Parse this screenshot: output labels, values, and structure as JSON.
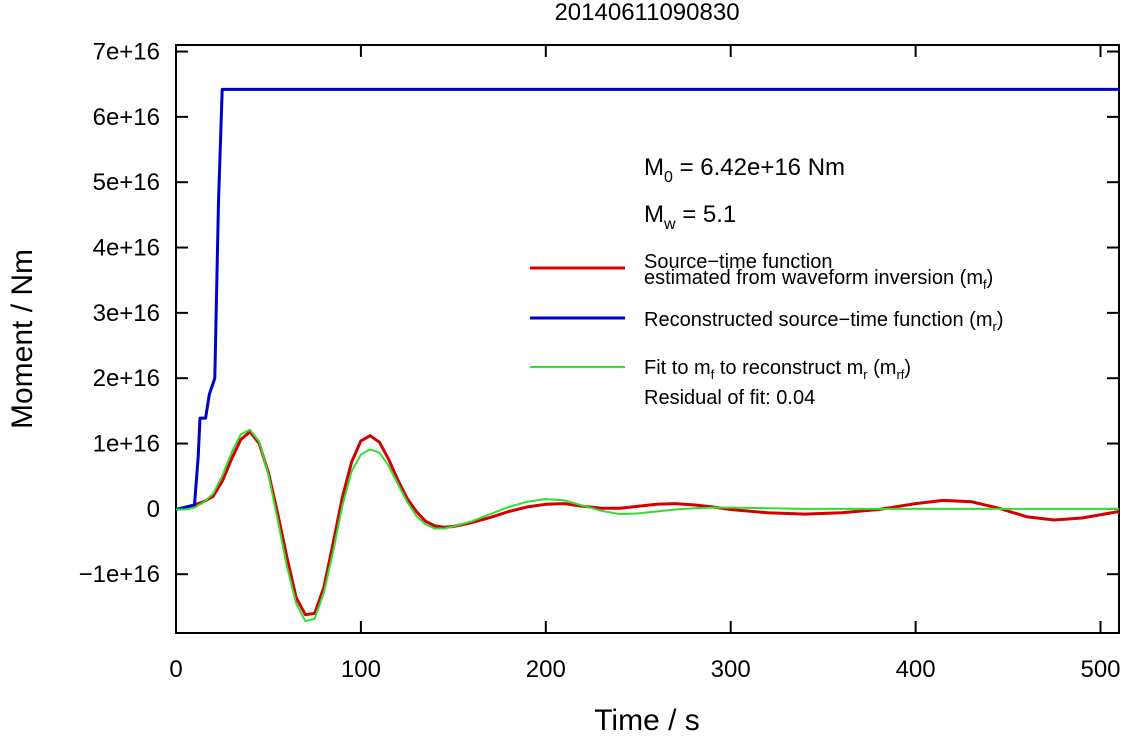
{
  "chart_data": {
    "type": "line",
    "title": "20140611090830",
    "xlabel": "Time / s",
    "ylabel": "Moment / Nm",
    "xlim": [
      0,
      510
    ],
    "ylim": [
      -1.9e+16,
      7.1e+16
    ],
    "x_ticks": [
      0,
      100,
      200,
      300,
      400,
      500
    ],
    "x_tick_labels": [
      "0",
      "100",
      "200",
      "300",
      "400",
      "500"
    ],
    "y_ticks": [
      -1e+16,
      0,
      1e+16,
      2e+16,
      3e+16,
      4e+16,
      5e+16,
      6e+16,
      7e+16
    ],
    "y_tick_labels": [
      "−1e+16",
      "0",
      "1e+16",
      "2e+16",
      "3e+16",
      "4e+16",
      "5e+16",
      "6e+16",
      "7e+16"
    ],
    "grid": false,
    "legend_position": "center-right",
    "annotations": {
      "m0_text": "M",
      "m0_sub": "0",
      "m0_value": " = 6.42e+16 Nm",
      "mw_text": "M",
      "mw_sub": "w",
      "mw_value": " = 5.1",
      "residual": "Residual of fit: 0.04"
    },
    "legend": {
      "red_line1": "Source−time function",
      "red_line2": "estimated from waveform inversion (m",
      "red_sub": "f",
      "red_tail": ")",
      "blue_main": "Reconstructed source−time function (m",
      "blue_sub": "r",
      "blue_tail": ")",
      "green_main": "Fit to m",
      "green_sub1": "f",
      "green_mid": " to reconstruct m",
      "green_sub2": "r",
      "green_mid2": " (m",
      "green_sub3": "rf",
      "green_tail": ")"
    },
    "series": [
      {
        "color": "#d40000",
        "x": [
          0,
          5,
          10,
          15,
          20,
          25,
          30,
          35,
          40,
          45,
          50,
          55,
          60,
          65,
          70,
          75,
          80,
          85,
          90,
          95,
          100,
          105,
          110,
          115,
          120,
          125,
          130,
          135,
          140,
          145,
          150,
          160,
          170,
          180,
          190,
          200,
          210,
          220,
          230,
          240,
          250,
          260,
          270,
          280,
          290,
          300,
          320,
          340,
          360,
          380,
          400,
          415,
          430,
          445,
          460,
          475,
          490,
          510
        ],
        "y": [
          -100000000000000.0,
          100000000000000.0,
          600000000000000.0,
          1100000000000000.0,
          1900000000000000.0,
          4200000000000000.0,
          7600000000000000.0,
          1.06e+16,
          1.18e+16,
          1e+16,
          5500000000000000.0,
          -700000000000000.0,
          -7400000000000000.0,
          -1.36e+16,
          -1.62e+16,
          -1.6e+16,
          -1.2e+16,
          -5200000000000000.0,
          1800000000000000.0,
          7200000000000000.0,
          1.04e+16,
          1.12e+16,
          1.02e+16,
          7600000000000000.0,
          4400000000000000.0,
          1600000000000000.0,
          -400000000000000.0,
          -1900000000000000.0,
          -2600000000000000.0,
          -2800000000000000.0,
          -2700000000000000.0,
          -2100000000000000.0,
          -1300000000000000.0,
          -400000000000000.0,
          300000000000000.0,
          700000000000000.0,
          800000000000000.0,
          400000000000000.0,
          100000000000000.0,
          100000000000000.0,
          400000000000000.0,
          700000000000000.0,
          800000000000000.0,
          600000000000000.0,
          300000000000000.0,
          -100000000000000.0,
          -600000000000000.0,
          -800000000000000.0,
          -600000000000000.0,
          -100000000000000.0,
          800000000000000.0,
          1300000000000000.0,
          1100000000000000.0,
          100000000000000.0,
          -1200000000000000.0,
          -1700000000000000.0,
          -1400000000000000.0,
          -400000000000000.0
        ]
      },
      {
        "color": "#0000cc",
        "x": [
          0,
          10,
          12,
          13,
          16,
          18,
          21,
          23,
          25,
          510
        ],
        "y": [
          -100000000000000.0,
          600000000000000.0,
          8000000000000000.0,
          1.39e+16,
          1.39e+16,
          1.75e+16,
          2e+16,
          4.7e+16,
          6.42e+16,
          6.42e+16
        ]
      },
      {
        "color": "#33dd33",
        "x": [
          0,
          5,
          10,
          15,
          20,
          25,
          30,
          35,
          40,
          45,
          50,
          55,
          60,
          65,
          70,
          75,
          80,
          85,
          90,
          95,
          100,
          105,
          110,
          115,
          120,
          125,
          130,
          135,
          140,
          145,
          150,
          160,
          170,
          180,
          190,
          200,
          210,
          220,
          230,
          240,
          250,
          260,
          270,
          280,
          290,
          300,
          320,
          340,
          360,
          380,
          400,
          420,
          440,
          460,
          480,
          500,
          510
        ],
        "y": [
          -100000000000000.0,
          -100000000000000.0,
          200000000000000.0,
          1000000000000000.0,
          2300000000000000.0,
          5000000000000000.0,
          8600000000000000.0,
          1.14e+16,
          1.21e+16,
          1.03e+16,
          5200000000000000.0,
          -1700000000000000.0,
          -8800000000000000.0,
          -1.45e+16,
          -1.72e+16,
          -1.68e+16,
          -1.28e+16,
          -6500000000000000.0,
          500000000000000.0,
          5800000000000000.0,
          8300000000000000.0,
          9100000000000000.0,
          8600000000000000.0,
          6600000000000000.0,
          3800000000000000.0,
          1100000000000000.0,
          -1100000000000000.0,
          -2400000000000000.0,
          -3000000000000000.0,
          -3000000000000000.0,
          -2700000000000000.0,
          -1900000000000000.0,
          -800000000000000.0,
          300000000000000.0,
          1100000000000000.0,
          1500000000000000.0,
          1300000000000000.0,
          500000000000000.0,
          -300000000000000.0,
          -800000000000000.0,
          -700000000000000.0,
          -400000000000000.0,
          -100000000000000.0,
          100000000000000.0,
          200000000000000.0,
          200000000000000.0,
          100000000000000.0,
          0,
          0,
          0,
          0,
          0,
          0,
          0,
          0,
          0,
          0
        ]
      }
    ]
  }
}
